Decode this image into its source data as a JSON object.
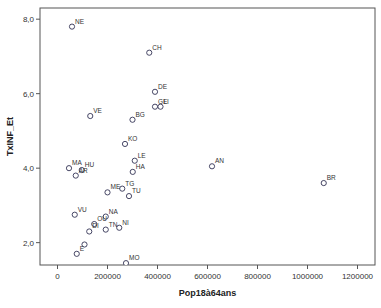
{
  "chart_data": {
    "type": "scatter",
    "x_label": "Pop18à64ans",
    "y_label": "TxINF_Et",
    "categories": [
      "NE",
      "CH",
      "DE",
      "GE",
      "LI",
      "VE",
      "BG",
      "KO",
      "LE",
      "MA",
      "HU",
      "AR",
      "AN",
      "BR",
      "HA",
      "TG",
      "ME",
      "TU",
      "VU",
      "NA",
      "OU",
      "NI",
      "TN",
      "DI",
      null,
      "E",
      "MO"
    ],
    "x": [
      58000,
      367000,
      390000,
      390000,
      412000,
      131000,
      300000,
      270000,
      309000,
      46000,
      97000,
      73000,
      618000,
      1065000,
      301000,
      259000,
      200000,
      286000,
      69000,
      193000,
      147000,
      247000,
      193000,
      127000,
      108000,
      77000,
      274000
    ],
    "values": [
      7.8,
      7.1,
      6.05,
      5.65,
      5.65,
      5.4,
      5.3,
      4.65,
      4.2,
      4.0,
      3.95,
      3.8,
      4.05,
      3.6,
      3.9,
      3.45,
      3.35,
      3.25,
      2.75,
      2.7,
      2.5,
      2.4,
      2.35,
      2.3,
      1.95,
      1.7,
      1.45
    ],
    "xlim": [
      -70000,
      1270000
    ],
    "xticks": [
      0,
      200000,
      400000,
      600000,
      800000,
      1000000,
      1200000
    ],
    "ylim": [
      1.4,
      8.3
    ],
    "yticks": [
      {
        "value": 2,
        "label": "2,0"
      },
      {
        "value": 4,
        "label": "4,0"
      },
      {
        "value": 6,
        "label": "6,0"
      },
      {
        "value": 8,
        "label": "8,0"
      }
    ],
    "color": "#333355",
    "marker": "circle",
    "grid": false,
    "data_labels": true
  }
}
